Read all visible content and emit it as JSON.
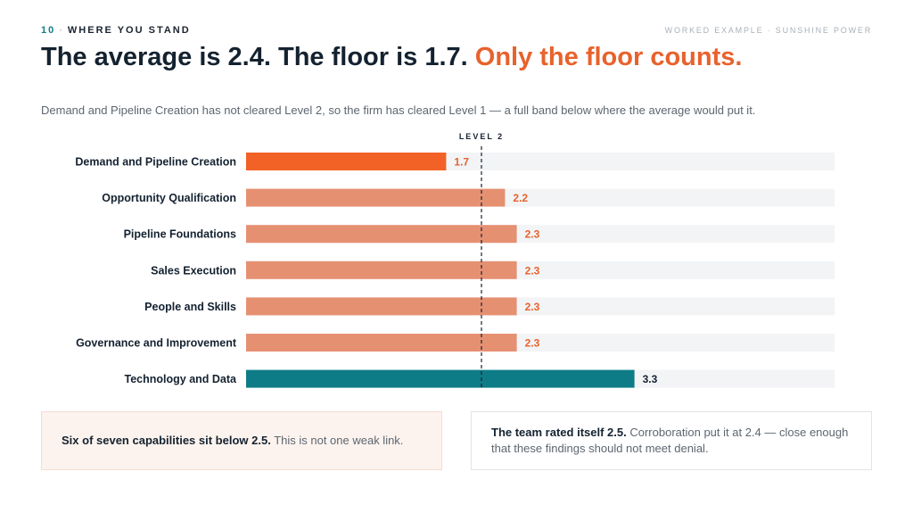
{
  "header": {
    "section_number": "10",
    "section_title": "WHERE YOU STAND",
    "corner_label": "WORKED EXAMPLE · SUNSHINE POWER"
  },
  "headline": {
    "main": "The average is 2.4. The floor is 1.7. ",
    "accent": "Only the floor counts."
  },
  "subtitle": "Demand and Pipeline Creation has not cleared Level 2, so the firm has cleared Level 1 — a full band below where the average would put it.",
  "colors": {
    "floor": "#f26126",
    "below": "#e69072",
    "above": "#0e7c86",
    "track": "#f2f4f6",
    "floor_text": "#e8622c",
    "above_text": "#142230"
  },
  "chart_data": {
    "type": "bar",
    "orientation": "horizontal",
    "categories": [
      "Demand and Pipeline Creation",
      "Opportunity Qualification",
      "Pipeline Foundations",
      "Sales Execution",
      "People and Skills",
      "Governance and Improvement",
      "Technology and Data"
    ],
    "values": [
      1.7,
      2.2,
      2.3,
      2.3,
      2.3,
      2.3,
      3.3
    ],
    "value_labels": [
      "1.7",
      "2.2",
      "2.3",
      "2.3",
      "2.3",
      "2.3",
      "3.3"
    ],
    "xlim": [
      0,
      5
    ],
    "reference_line": {
      "label": "LEVEL 2",
      "value": 2.0
    },
    "grid": false,
    "legend": "none"
  },
  "cards": {
    "left": {
      "bold": "Six of seven capabilities sit below 2.5.",
      "text": " This is not one weak link."
    },
    "right": {
      "bold": "The team rated itself 2.5.",
      "text": " Corroboration put it at 2.4 — close enough that these findings should not meet denial."
    }
  }
}
